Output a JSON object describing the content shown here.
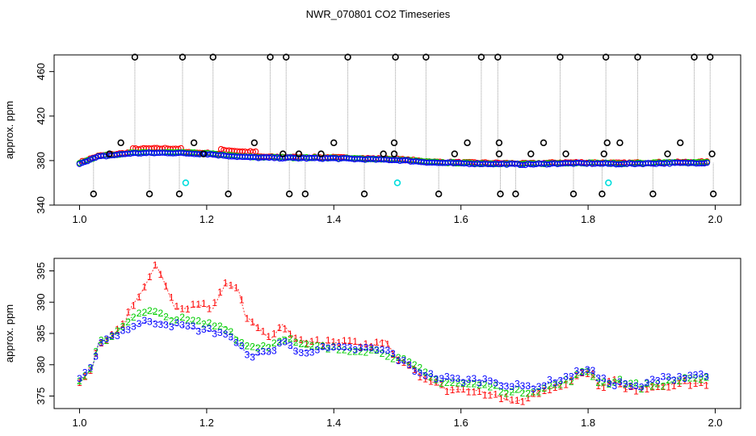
{
  "title": "NWR_070801  CO2 Timeseries",
  "colors": {
    "series1": "#ff0000",
    "series2": "#00cd00",
    "series3": "#0000ff",
    "outlier": "#000000",
    "flag": "#00dddd",
    "guide": "#9a9a9a"
  },
  "chart_data": [
    {
      "type": "scatter",
      "panel": "top",
      "ylabel": "approx. ppm",
      "xlim": [
        0.96,
        2.04
      ],
      "ylim": [
        340,
        475
      ],
      "xticks": [
        1.0,
        1.2,
        1.4,
        1.6,
        1.8,
        2.0
      ],
      "xtick_labels": [
        "1.0",
        "1.2",
        "1.4",
        "1.6",
        "1.8",
        "2.0"
      ],
      "yticks": [
        340,
        380,
        420,
        460
      ],
      "ytick_labels": [
        "340",
        "380",
        "420",
        "460"
      ],
      "baseline_knots": [
        [
          1.0,
          377.5
        ],
        [
          1.03,
          383.5
        ],
        [
          1.08,
          386.5
        ],
        [
          1.14,
          387
        ],
        [
          1.2,
          386
        ],
        [
          1.26,
          383
        ],
        [
          1.3,
          382.5
        ],
        [
          1.4,
          382
        ],
        [
          1.5,
          380.5
        ],
        [
          1.56,
          378
        ],
        [
          1.6,
          377.5
        ],
        [
          1.66,
          377
        ],
        [
          1.7,
          376.5
        ],
        [
          1.76,
          377.5
        ],
        [
          1.8,
          377.5
        ],
        [
          1.85,
          377
        ],
        [
          1.9,
          377.5
        ],
        [
          1.99,
          378
        ]
      ],
      "high_outliers_x": [
        1.087,
        1.162,
        1.21,
        1.3,
        1.325,
        1.422,
        1.497,
        1.545,
        1.632,
        1.658,
        1.756,
        1.828,
        1.878,
        1.967,
        1.992
      ],
      "high_outlier_value": 473,
      "low_outliers_x": [
        1.022,
        1.11,
        1.157,
        1.234,
        1.33,
        1.355,
        1.448,
        1.565,
        1.662,
        1.686,
        1.777,
        1.822,
        1.902,
        1.997
      ],
      "low_outlier_value": 350,
      "mid_outliers": [
        [
          1.065,
          396
        ],
        [
          1.047,
          386
        ],
        [
          1.18,
          396
        ],
        [
          1.195,
          386
        ],
        [
          1.275,
          396
        ],
        [
          1.32,
          386
        ],
        [
          1.345,
          386
        ],
        [
          1.38,
          386
        ],
        [
          1.4,
          396
        ],
        [
          1.478,
          386
        ],
        [
          1.495,
          386
        ],
        [
          1.495,
          396
        ],
        [
          1.59,
          386
        ],
        [
          1.61,
          396
        ],
        [
          1.66,
          386
        ],
        [
          1.66,
          396
        ],
        [
          1.71,
          386
        ],
        [
          1.73,
          396
        ],
        [
          1.765,
          386
        ],
        [
          1.825,
          386
        ],
        [
          1.83,
          396
        ],
        [
          1.85,
          396
        ],
        [
          1.925,
          386
        ],
        [
          1.945,
          396
        ],
        [
          1.995,
          386
        ]
      ],
      "flag_points": [
        [
          1.167,
          360
        ],
        [
          1.5,
          360
        ],
        [
          1.832,
          360
        ]
      ]
    },
    {
      "type": "scatter",
      "panel": "bottom",
      "ylabel": "approx. ppm",
      "xlim": [
        0.96,
        2.04
      ],
      "ylim": [
        373,
        397
      ],
      "xticks": [
        1.0,
        1.2,
        1.4,
        1.6,
        1.8,
        2.0
      ],
      "xtick_labels": [
        "1.0",
        "1.2",
        "1.4",
        "1.6",
        "1.8",
        "2.0"
      ],
      "yticks": [
        375,
        380,
        385,
        390,
        395
      ],
      "ytick_labels": [
        "375",
        "380",
        "385",
        "390",
        "395"
      ],
      "series": [
        {
          "name": "1",
          "points": [
            [
              1.0,
              377.5
            ],
            [
              1.02,
              379.5
            ],
            [
              1.03,
              383.5
            ],
            [
              1.05,
              384.5
            ],
            [
              1.07,
              386.5
            ],
            [
              1.08,
              389
            ],
            [
              1.1,
              392
            ],
            [
              1.12,
              396
            ],
            [
              1.13,
              394
            ],
            [
              1.15,
              389
            ],
            [
              1.17,
              389
            ],
            [
              1.19,
              389.5
            ],
            [
              1.21,
              389
            ],
            [
              1.22,
              391
            ],
            [
              1.23,
              393
            ],
            [
              1.25,
              392
            ],
            [
              1.26,
              388
            ],
            [
              1.28,
              386
            ],
            [
              1.3,
              384
            ],
            [
              1.32,
              386.5
            ],
            [
              1.34,
              384
            ],
            [
              1.38,
              383.5
            ],
            [
              1.42,
              383.5
            ],
            [
              1.46,
              383
            ],
            [
              1.48,
              384
            ],
            [
              1.5,
              381
            ],
            [
              1.52,
              380
            ],
            [
              1.54,
              378
            ],
            [
              1.58,
              376
            ],
            [
              1.62,
              376
            ],
            [
              1.66,
              375
            ],
            [
              1.68,
              374
            ],
            [
              1.7,
              374.5
            ],
            [
              1.72,
              375.5
            ],
            [
              1.75,
              376.5
            ],
            [
              1.78,
              378
            ],
            [
              1.8,
              379
            ],
            [
              1.82,
              376.5
            ],
            [
              1.84,
              377.5
            ],
            [
              1.86,
              376
            ],
            [
              1.9,
              376.5
            ],
            [
              1.94,
              377
            ],
            [
              1.99,
              377
            ]
          ]
        },
        {
          "name": "2",
          "points": [
            [
              1.0,
              377
            ],
            [
              1.02,
              379.5
            ],
            [
              1.03,
              383.5
            ],
            [
              1.05,
              384.5
            ],
            [
              1.08,
              387.5
            ],
            [
              1.11,
              388.5
            ],
            [
              1.14,
              387.5
            ],
            [
              1.17,
              387
            ],
            [
              1.2,
              386.5
            ],
            [
              1.23,
              386
            ],
            [
              1.26,
              383
            ],
            [
              1.3,
              383
            ],
            [
              1.32,
              384.5
            ],
            [
              1.35,
              383
            ],
            [
              1.4,
              382.5
            ],
            [
              1.44,
              382.5
            ],
            [
              1.48,
              382
            ],
            [
              1.5,
              381
            ],
            [
              1.53,
              379.5
            ],
            [
              1.56,
              377.5
            ],
            [
              1.6,
              377
            ],
            [
              1.65,
              376.5
            ],
            [
              1.68,
              375.5
            ],
            [
              1.72,
              376
            ],
            [
              1.76,
              377
            ],
            [
              1.8,
              379
            ],
            [
              1.82,
              377
            ],
            [
              1.85,
              377.5
            ],
            [
              1.88,
              376.5
            ],
            [
              1.92,
              377
            ],
            [
              1.96,
              378
            ],
            [
              1.99,
              377.5
            ]
          ]
        },
        {
          "name": "3",
          "points": [
            [
              1.0,
              377.5
            ],
            [
              1.02,
              379.5
            ],
            [
              1.03,
              383.5
            ],
            [
              1.05,
              384.5
            ],
            [
              1.08,
              386
            ],
            [
              1.11,
              387
            ],
            [
              1.14,
              386.5
            ],
            [
              1.17,
              386
            ],
            [
              1.2,
              385.5
            ],
            [
              1.23,
              385
            ],
            [
              1.25,
              383
            ],
            [
              1.27,
              381.5
            ],
            [
              1.3,
              382
            ],
            [
              1.32,
              384
            ],
            [
              1.34,
              382
            ],
            [
              1.38,
              382.5
            ],
            [
              1.42,
              382.5
            ],
            [
              1.46,
              382.5
            ],
            [
              1.49,
              382
            ],
            [
              1.5,
              381
            ],
            [
              1.53,
              379
            ],
            [
              1.56,
              378
            ],
            [
              1.6,
              377.5
            ],
            [
              1.65,
              377.5
            ],
            [
              1.68,
              376.5
            ],
            [
              1.72,
              376.5
            ],
            [
              1.75,
              377.5
            ],
            [
              1.78,
              378.5
            ],
            [
              1.8,
              379.5
            ],
            [
              1.82,
              377.5
            ],
            [
              1.84,
              377
            ],
            [
              1.86,
              377
            ],
            [
              1.88,
              376
            ],
            [
              1.9,
              377.5
            ],
            [
              1.94,
              378
            ],
            [
              1.97,
              378.5
            ],
            [
              1.99,
              378
            ]
          ]
        }
      ]
    }
  ]
}
